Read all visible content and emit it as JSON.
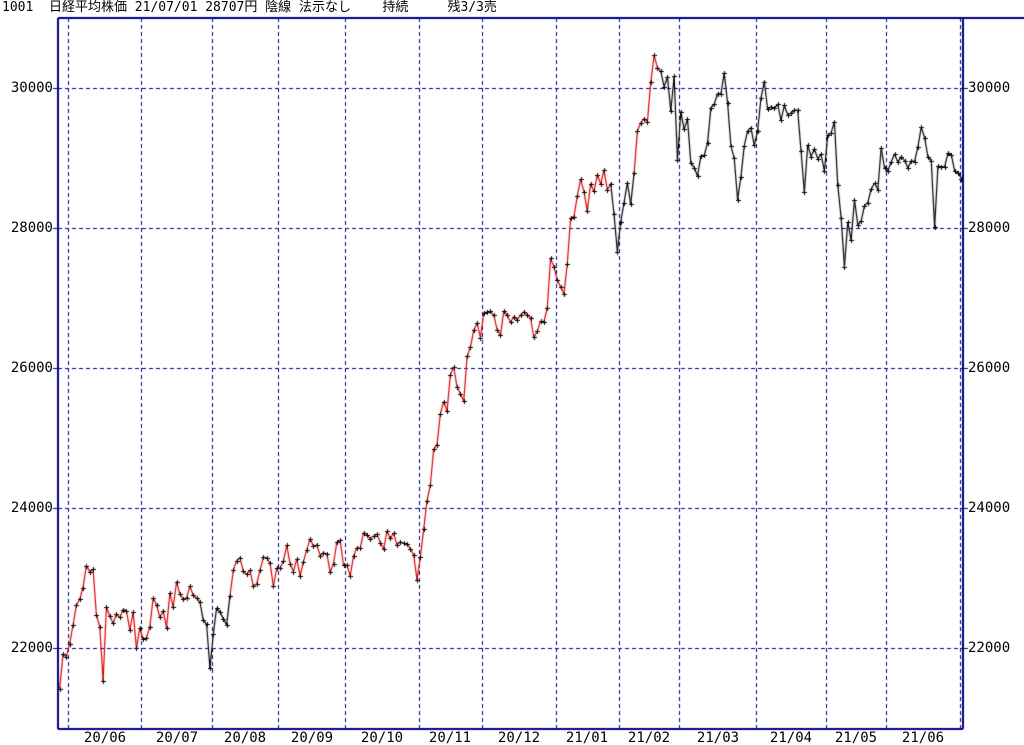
{
  "header": {
    "title": "1001  日経平均株価 21/07/01 28707円 陰線 法示なし    持続     残3/3売",
    "instrument_code": "1001",
    "instrument_name": "日経平均株価",
    "quote_date": "21/07/01",
    "quote_price": "28707円",
    "candle_type": "陰線",
    "signal_display": "法示なし",
    "trend_state": "持続",
    "position_state": "残3/3売"
  },
  "colors": {
    "uptrend_line": "#dd0000",
    "downtrend_line": "#000000",
    "grid": "#000080",
    "border": "#000080",
    "marker": "#000000",
    "label_text": "#000000",
    "background": "#ffffff"
  },
  "chart_data": {
    "type": "line",
    "title": "1001 日経平均株価 21/07/01 28707円 陰線 法示なし 持続 残3/3売",
    "ylabel": "",
    "xlabel": "",
    "grid": "dashed-navy",
    "y_ticks": [
      22000,
      24000,
      26000,
      28000,
      30000
    ],
    "ylim": [
      20850,
      31000
    ],
    "x_axis_labels": [
      "20/06",
      "20/07",
      "20/08",
      "20/09",
      "20/10",
      "20/11",
      "20/12",
      "21/01",
      "21/02",
      "21/03",
      "21/04",
      "21/05",
      "21/06"
    ],
    "series_note": "daily closes; colors per point: R=red uptrend segment, B=black downtrend segment",
    "months": [
      {
        "label": "",
        "closes": [
          21419,
          21916,
          21878
        ],
        "colors": "RRR"
      },
      {
        "label": "20/06",
        "closes": [
          22062,
          22326,
          22614,
          22696,
          22864,
          23178,
          23091,
          23125,
          22472,
          22306,
          21531,
          22582,
          22456,
          22355,
          22479,
          22437,
          22549,
          22534,
          22260,
          22512,
          21995,
          22288
        ],
        "colors": "RRRRRRRRRRRRRRRRRRRRRR"
      },
      {
        "label": "20/07",
        "closes": [
          22122,
          22146,
          22306,
          22714,
          22615,
          22439,
          22529,
          22291,
          22785,
          22587,
          22946,
          22770,
          22696,
          22717,
          22884,
          22751,
          22715,
          22657,
          22397,
          22339,
          21710
        ],
        "colors": "RRRRRRRRRRRRRRRRRRBBB"
      },
      {
        "label": "20/08",
        "closes": [
          22195,
          22573,
          22514,
          22418,
          22330,
          22750,
          23110,
          23249,
          23289,
          23096,
          23051,
          23110,
          22880,
          22920,
          23110,
          23296,
          23290,
          23208,
          22882,
          23140
        ],
        "colors": "BBBBBBRRRRRRRRRRRRRR"
      },
      {
        "label": "20/09",
        "closes": [
          23138,
          23247,
          23466,
          23205,
          23090,
          23274,
          23032,
          23235,
          23406,
          23559,
          23454,
          23475,
          23319,
          23360,
          23346,
          23087,
          23204,
          23511,
          23539,
          23185
        ],
        "colors": "RRRRRRRRRRRRRRRRRRRR"
      },
      {
        "label": "20/10",
        "closes": [
          23185,
          23030,
          23312,
          23434,
          23423,
          23647,
          23620,
          23559,
          23601,
          23627,
          23507,
          23411,
          23671,
          23567,
          23639,
          23474,
          23517,
          23494,
          23486,
          23419,
          23332,
          22977
        ],
        "colors": "RRRRRRRRRRRRRRRRRRRRRR"
      },
      {
        "label": "20/11",
        "closes": [
          23295,
          23695,
          24105,
          24325,
          24839,
          24906,
          25349,
          25521,
          25386,
          25907,
          26014,
          25728,
          25634,
          25527,
          26165,
          26297,
          26537,
          26645,
          26434
        ],
        "colors": "RRRRRRRRRRRRRRRRRRR"
      },
      {
        "label": "20/12",
        "closes": [
          26787,
          26800,
          26809,
          26751,
          26547,
          26467,
          26817,
          26756,
          26653,
          26732,
          26688,
          26757,
          26806,
          26763,
          26714,
          26436,
          26524,
          26668,
          26657,
          26854,
          27568,
          27444
        ],
        "colors": "RRRRRRRRRRRRRRRRRRRRRR"
      },
      {
        "label": "21/01",
        "closes": [
          27258,
          27159,
          27056,
          27490,
          28139,
          28164,
          28456,
          28698,
          28519,
          28242,
          28633,
          28523,
          28756,
          28631,
          28822,
          28546,
          28635,
          28197,
          27663
        ],
        "colors": "RRRRRRRRRRRRRRRRRBB"
      },
      {
        "label": "21/02",
        "closes": [
          28091,
          28362,
          28646,
          28341,
          28779,
          29388,
          29505,
          29563,
          29520,
          30084,
          30467,
          30292,
          30236,
          30018,
          30156,
          29671,
          30168,
          28966
        ],
        "colors": "BBBBBRRRRRRRRBBBBB"
      },
      {
        "label": "21/03",
        "closes": [
          29664,
          29408,
          29559,
          28930,
          28864,
          28743,
          29027,
          29036,
          29212,
          29718,
          29767,
          29921,
          29914,
          30217,
          29792,
          29174,
          28995,
          28406,
          28730,
          29176,
          29384,
          29433,
          29179
        ],
        "colors": "BBBBBBBBBBBBBBBBBBBBBBB"
      },
      {
        "label": "21/04",
        "closes": [
          29389,
          29854,
          30089,
          29697,
          29731,
          29708,
          29768,
          29539,
          29751,
          29621,
          29643,
          29683,
          29685,
          29100,
          28508,
          29188,
          29021,
          29126,
          28992,
          29053,
          28813
        ],
        "colors": "BBBBBBBBBBBBBBBBBBBBB"
      },
      {
        "label": "21/05",
        "closes": [
          29331,
          29358,
          29518,
          28609,
          28148,
          27448,
          28084,
          27825,
          28406,
          28044,
          28098,
          28318,
          28364,
          28554,
          28642,
          28549,
          29149,
          28860
        ],
        "colors": "BBBBBBBBBBBBBBBBBB"
      },
      {
        "label": "21/06",
        "closes": [
          28814,
          28946,
          29058,
          28942,
          29019,
          28964,
          28861,
          28959,
          28949,
          29161,
          29441,
          29291,
          29018,
          28964,
          28011,
          28884,
          28875,
          28876,
          29066,
          29048,
          28812,
          28792
        ],
        "colors": "BBBBBBBBBBBBBBBBBBBBBB"
      },
      {
        "label": "",
        "closes": [
          28707
        ],
        "colors": "B"
      }
    ]
  }
}
